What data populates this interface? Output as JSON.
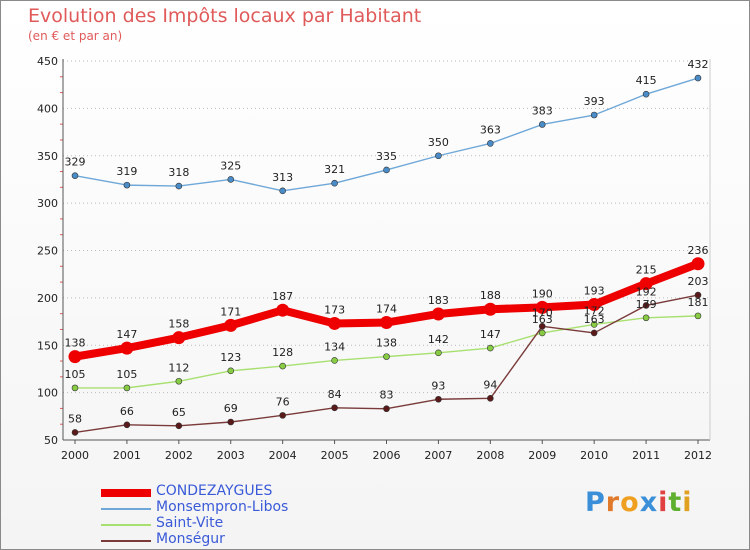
{
  "title": "Evolution des Impôts locaux par Habitant",
  "subtitle": "(en € et par an)",
  "logo": {
    "letters": [
      "P",
      "r",
      "o",
      "x",
      "i",
      "t",
      "i"
    ],
    "colors": [
      "#3a8fd8",
      "#e07a2a",
      "#f0a020",
      "#3a8fd8",
      "#e04040",
      "#60b030",
      "#e0a020"
    ]
  },
  "chart_data": {
    "type": "line",
    "title": "Evolution des Impôts locaux par Habitant",
    "subtitle": "(en € et par an)",
    "xlabel": "",
    "ylabel": "",
    "x": [
      2000,
      2001,
      2002,
      2003,
      2004,
      2005,
      2006,
      2007,
      2008,
      2009,
      2010,
      2011,
      2012
    ],
    "x_tick_labels": [
      "2000",
      "2001",
      "2002",
      "2003",
      "2004",
      "2005",
      "2006",
      "2007",
      "2008",
      "2009",
      "2010",
      "2011",
      "2012"
    ],
    "ylim": [
      50,
      450
    ],
    "y_ticks": [
      50,
      100,
      150,
      200,
      250,
      300,
      350,
      400,
      450
    ],
    "y_tick_labels": [
      "50",
      "100",
      "150",
      "200",
      "250",
      "300",
      "350",
      "400",
      "450"
    ],
    "grid": "horizontal dotted",
    "legend_position": "bottom-left",
    "series": [
      {
        "name": "CONDEZAYGUES",
        "color": "#ee0000",
        "marker_color": "#ee0000",
        "emphasis": "thick",
        "values": [
          138,
          147,
          158,
          171,
          187,
          173,
          174,
          183,
          188,
          190,
          193,
          215,
          236
        ],
        "labels": [
          "138",
          "147",
          "158",
          "171",
          "187",
          "173",
          "174",
          "183",
          "188",
          "190",
          "193",
          "215",
          "236"
        ]
      },
      {
        "name": "Monsempron-Libos",
        "color": "#6fa8d8",
        "marker_color": "#4a8cc8",
        "emphasis": "thin",
        "values": [
          329,
          319,
          318,
          325,
          313,
          321,
          335,
          350,
          363,
          383,
          393,
          415,
          432
        ],
        "labels": [
          "329",
          "319",
          "318",
          "325",
          "313",
          "321",
          "335",
          "350",
          "363",
          "383",
          "393",
          "415",
          "432"
        ]
      },
      {
        "name": "Saint-Vite",
        "color": "#a8e070",
        "marker_color": "#88cc44",
        "emphasis": "thin",
        "values": [
          105,
          105,
          112,
          123,
          128,
          134,
          138,
          142,
          147,
          163,
          172,
          179,
          181
        ],
        "labels": [
          "105",
          "105",
          "112",
          "123",
          "128",
          "134",
          "138",
          "142",
          "147",
          "163",
          "172",
          "179",
          "181"
        ]
      },
      {
        "name": "Monségur",
        "color": "#7a3a3a",
        "marker_color": "#5a1a1a",
        "emphasis": "thin",
        "values": [
          58,
          66,
          65,
          69,
          76,
          84,
          83,
          93,
          94,
          170,
          163,
          192,
          203
        ],
        "labels": [
          "58",
          "66",
          "65",
          "69",
          "76",
          "84",
          "83",
          "93",
          "94",
          "170",
          "163",
          "192",
          "203"
        ]
      }
    ]
  }
}
